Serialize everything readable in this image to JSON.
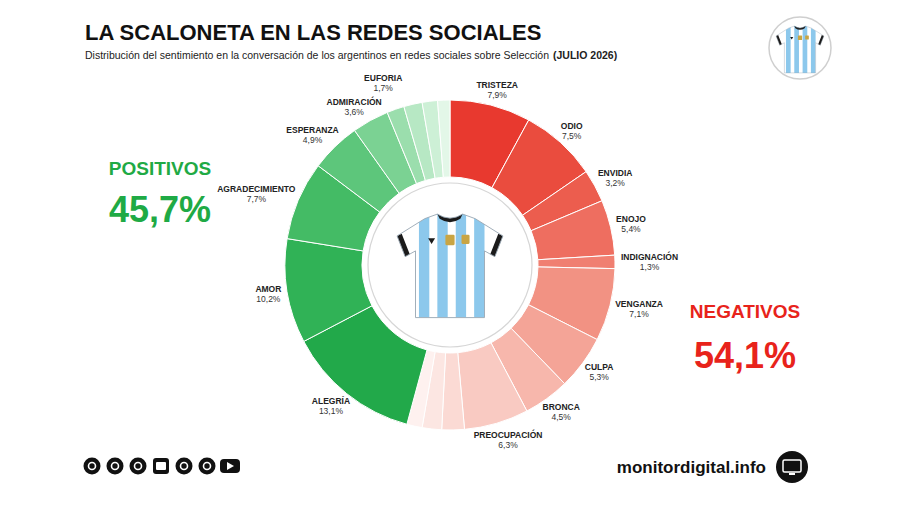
{
  "chart_data": {
    "type": "donut",
    "title": "LA SCALONETA EN LAS REDES SOCIALES",
    "subtitle": "Distribución del sentimiento en la conversación de los argentinos en redes sociales sobre Selección",
    "period": "(JULIO 2026)",
    "categories": [
      "TRISTEZA",
      "ODIO",
      "ENVIDIA",
      "ENOJO",
      "INDIGNACIÓN",
      "VENGANZA",
      "CULPA",
      "BRONCA",
      "PREOCUPACIÓN",
      null,
      null,
      null,
      "ALEGRÍA",
      "AMOR",
      "AGRADECIMIENTO",
      "ESPERANZA",
      "ADMIRACIÓN",
      "EUFORIA",
      null,
      null,
      null
    ],
    "values": [
      7.9,
      7.5,
      3.2,
      5.4,
      1.3,
      7.1,
      5.3,
      4.5,
      6.3,
      2.2,
      1.9,
      1.5,
      13.1,
      10.2,
      7.7,
      4.9,
      3.6,
      1.7,
      1.8,
      1.5,
      1.2
    ],
    "value_labels": [
      "7,9%",
      "7,5%",
      "3,2%",
      "5,4%",
      "1,3%",
      "7,1%",
      "5,3%",
      "4,5%",
      "6,3%",
      null,
      null,
      null,
      "13,1%",
      "10,2%",
      "7,7%",
      "4,9%",
      "3,6%",
      "1,7%",
      null,
      null,
      null
    ],
    "colors": [
      "#e8392f",
      "#ea4c3e",
      "#ec5d4e",
      "#ee6e60",
      "#f07f71",
      "#f29283",
      "#f4a497",
      "#f7b7ac",
      "#f9cac2",
      "#fbdad4",
      "#fce6e2",
      "#fef1ef",
      "#22a94a",
      "#30b256",
      "#44bb65",
      "#5dc67b",
      "#7bd293",
      "#9bdead",
      "#b7e8c4",
      "#cdf0d6",
      "#e3f7e8"
    ],
    "data_labels": true,
    "groups": {
      "labels": [
        "POSITIVOS",
        "NEGATIVOS"
      ],
      "values": [
        45.7,
        54.1
      ],
      "value_labels": [
        "45,7%",
        "54,1%"
      ],
      "colors": [
        "#1faa45",
        "#e8231b"
      ]
    },
    "source": "monitordigital.info"
  }
}
